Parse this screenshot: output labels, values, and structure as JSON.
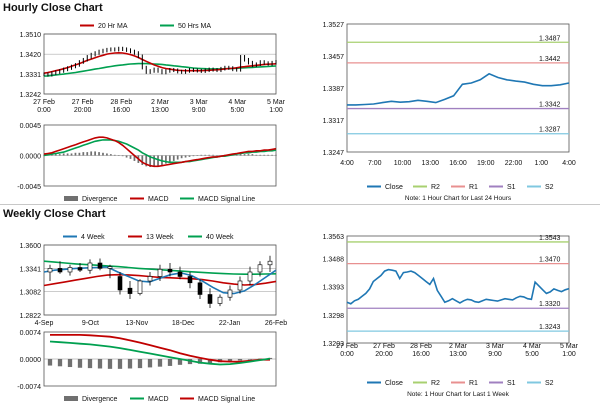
{
  "colors": {
    "close": "#1f77b4",
    "ma_fast": "#c00000",
    "ma_slow": "#00a050",
    "r2": "#a8d070",
    "r1": "#e89090",
    "s1": "#a080c0",
    "s2": "#80c8e0",
    "divergence": "#707070",
    "up": "#1f4fbf",
    "down": "#000000"
  },
  "hourly": {
    "title": "Hourly Close Chart",
    "legend": [
      "20 Hr MA",
      "50 Hrs MA"
    ],
    "macd_legend": [
      "Divergence",
      "MACD",
      "MACD Signal Line"
    ],
    "note": "Note: 1 Hour Chart for Last 24 Hours",
    "pivot_legend": [
      "Close",
      "R2",
      "R1",
      "S1",
      "S2"
    ]
  },
  "weekly": {
    "title": "Weekly Close Chart",
    "legend": [
      "4 Week",
      "13 Week",
      "40 Week"
    ],
    "macd_legend": [
      "Divergence",
      "MACD",
      "MACD Signal Line"
    ],
    "note": "Note: 1 Hour Chart for Last 1 Week",
    "pivot_legend": [
      "Close",
      "R2",
      "R1",
      "S1",
      "S2"
    ]
  },
  "chart_data": [
    {
      "id": "hourly-price",
      "type": "line",
      "title": "Hourly Close Chart",
      "yticks": [
        "1.3510",
        "1.3420",
        "1.3331",
        "1.3242"
      ],
      "ylim": [
        1.3242,
        1.351
      ],
      "xticks": [
        "27 Feb\n0:00",
        "27 Feb\n20:00",
        "28 Feb\n16:00",
        "2 Mar\n13:00",
        "3 Mar\n9:00",
        "4 Mar\n5:00",
        "5 Mar\n1:00"
      ],
      "price": [
        1.333,
        1.3328,
        1.3335,
        1.334,
        1.3345,
        1.3352,
        1.3358,
        1.3365,
        1.3372,
        1.3385,
        1.3395,
        1.3408,
        1.3418,
        1.3425,
        1.3432,
        1.3436,
        1.344,
        1.3442,
        1.344,
        1.3445,
        1.3442,
        1.3438,
        1.3432,
        1.3425,
        1.341,
        1.336,
        1.334,
        1.3345,
        1.3352,
        1.3345,
        1.3338,
        1.3345,
        1.335,
        1.3348,
        1.3342,
        1.334,
        1.3345,
        1.335,
        1.3348,
        1.3346,
        1.3344,
        1.3348,
        1.3352,
        1.335,
        1.3348,
        1.3355,
        1.336,
        1.3358,
        1.3352,
        1.335,
        1.3408,
        1.3395,
        1.3382,
        1.337,
        1.3375,
        1.3385,
        1.338,
        1.3376,
        1.3382,
        1.3386
      ],
      "series": [
        {
          "name": "20 Hr MA",
          "values": [
            1.3335,
            1.3338,
            1.3342,
            1.3346,
            1.335,
            1.3355,
            1.336,
            1.3366,
            1.3372,
            1.3378,
            1.3385,
            1.3392,
            1.3398,
            1.3404,
            1.341,
            1.3415,
            1.342,
            1.3423,
            1.3425,
            1.3426,
            1.3425,
            1.3422,
            1.3418,
            1.3412,
            1.3405,
            1.3396,
            1.3388,
            1.338,
            1.3372,
            1.3366,
            1.336,
            1.3356,
            1.3353,
            1.335,
            1.3348,
            1.3347,
            1.3346,
            1.3346,
            1.3346,
            1.3346,
            1.3346,
            1.3347,
            1.3348,
            1.3349,
            1.335,
            1.3352,
            1.3354,
            1.3356,
            1.3357,
            1.3359,
            1.3362,
            1.3364,
            1.3366,
            1.3368,
            1.337,
            1.3372,
            1.3374,
            1.3375,
            1.3376,
            1.3377
          ]
        },
        {
          "name": "50 Hrs MA",
          "values": [
            1.3322,
            1.3323,
            1.3325,
            1.3327,
            1.3329,
            1.3331,
            1.3333,
            1.3336,
            1.3338,
            1.3341,
            1.3344,
            1.3347,
            1.335,
            1.3353,
            1.3356,
            1.3359,
            1.3362,
            1.3365,
            1.3368,
            1.337,
            1.3372,
            1.3374,
            1.3376,
            1.3377,
            1.3378,
            1.3378,
            1.3378,
            1.3377,
            1.3376,
            1.3375,
            1.3374,
            1.3372,
            1.337,
            1.3368,
            1.3366,
            1.3364,
            1.3362,
            1.336,
            1.3358,
            1.3357,
            1.3356,
            1.3355,
            1.3354,
            1.3354,
            1.3354,
            1.3354,
            1.3355,
            1.3355,
            1.3356,
            1.3357,
            1.3358,
            1.3359,
            1.336,
            1.3361,
            1.3362,
            1.3363,
            1.3364,
            1.3365,
            1.3366,
            1.3367
          ]
        }
      ]
    },
    {
      "id": "hourly-macd",
      "type": "line",
      "yticks": [
        "0.0045",
        "0.0000",
        "-0.0045"
      ],
      "ylim": [
        -0.0045,
        0.0045
      ],
      "divergence": [
        0.0001,
        0.0001,
        0.0002,
        0.0002,
        0.0002,
        0.0003,
        0.0003,
        0.0003,
        0.0004,
        0.0004,
        0.0005,
        0.0005,
        0.0006,
        0.0006,
        0.0005,
        0.0004,
        0.0003,
        0.0002,
        0.0001,
        0.0,
        -0.0001,
        -0.0003,
        -0.0005,
        -0.0008,
        -0.0011,
        -0.0014,
        -0.0016,
        -0.0017,
        -0.0017,
        -0.0016,
        -0.0014,
        -0.0012,
        -0.001,
        -0.0008,
        -0.0006,
        -0.0004,
        -0.0003,
        -0.0002,
        -0.0001,
        0.0,
        0.0001,
        0.0001,
        0.0001,
        0.0001,
        0.0,
        0.0,
        0.0001,
        0.0001,
        0.0001,
        0.0001,
        0.0002,
        0.0002,
        0.0002,
        0.0002,
        0.0001,
        0.0001,
        0.0001,
        0.0001,
        0.0001,
        0.0001
      ],
      "series": [
        {
          "name": "MACD",
          "values": [
            0.0002,
            0.0003,
            0.0004,
            0.0006,
            0.0008,
            0.001,
            0.0012,
            0.0014,
            0.0016,
            0.0018,
            0.002,
            0.0022,
            0.0024,
            0.0026,
            0.0027,
            0.0027,
            0.0026,
            0.0024,
            0.0022,
            0.0019,
            0.0015,
            0.001,
            0.0005,
            0.0,
            -0.0005,
            -0.001,
            -0.0013,
            -0.0015,
            -0.0016,
            -0.0016,
            -0.0015,
            -0.0014,
            -0.0013,
            -0.0012,
            -0.0011,
            -0.001,
            -0.0009,
            -0.0008,
            -0.0007,
            -0.0006,
            -0.0005,
            -0.0004,
            -0.0003,
            -0.0002,
            -0.0002,
            -0.0001,
            0.0,
            0.0001,
            0.0002,
            0.0003,
            0.0004,
            0.0005,
            0.0006,
            0.0006,
            0.0007,
            0.0007,
            0.0008,
            0.0008,
            0.0009,
            0.001
          ]
        },
        {
          "name": "MACD Signal Line",
          "values": [
            0.0,
            0.0001,
            0.0002,
            0.0003,
            0.0004,
            0.0005,
            0.0007,
            0.0009,
            0.0011,
            0.0013,
            0.0015,
            0.0017,
            0.0019,
            0.0021,
            0.0022,
            0.0023,
            0.0023,
            0.0023,
            0.0022,
            0.0021,
            0.0019,
            0.0017,
            0.0014,
            0.0011,
            0.0008,
            0.0004,
            0.0001,
            -0.0002,
            -0.0004,
            -0.0006,
            -0.0008,
            -0.0009,
            -0.001,
            -0.001,
            -0.001,
            -0.001,
            -0.0009,
            -0.0009,
            -0.0008,
            -0.0007,
            -0.0006,
            -0.0005,
            -0.0004,
            -0.0003,
            -0.0002,
            -0.0001,
            -0.0001,
            0.0,
            0.0001,
            0.0002,
            0.0003,
            0.0004,
            0.0004,
            0.0005,
            0.0005,
            0.0006,
            0.0006,
            0.0007,
            0.0007,
            0.0008
          ]
        }
      ]
    },
    {
      "id": "hourly-pivot",
      "type": "line",
      "yticks": [
        "1.3527",
        "1.3457",
        "1.3387",
        "1.3317",
        "1.3247"
      ],
      "ylim": [
        1.3247,
        1.3527
      ],
      "xticks": [
        "4:00",
        "7:00",
        "10:00",
        "13:00",
        "16:00",
        "19:00",
        "22:00",
        "1:00",
        "4:00"
      ],
      "levels": [
        {
          "name": "R2",
          "value": 1.3487,
          "label": "1.3487"
        },
        {
          "name": "R1",
          "value": 1.3442,
          "label": "1.3442"
        },
        {
          "name": "S1",
          "value": 1.3342,
          "label": "1.3342"
        },
        {
          "name": "S2",
          "value": 1.3287,
          "label": "1.3287"
        }
      ],
      "close": [
        1.335,
        1.335,
        1.3351,
        1.3352,
        1.3355,
        1.3358,
        1.3356,
        1.3357,
        1.336,
        1.3358,
        1.3355,
        1.3362,
        1.337,
        1.3395,
        1.3398,
        1.3405,
        1.3418,
        1.341,
        1.3405,
        1.3402,
        1.34,
        1.3395,
        1.3392,
        1.3392,
        1.3394,
        1.3398
      ]
    },
    {
      "id": "weekly-price",
      "type": "line",
      "title": "Weekly Close Chart",
      "yticks": [
        "1.3600",
        "1.3341",
        "1.3082",
        "1.2822"
      ],
      "ylim": [
        1.2822,
        1.36
      ],
      "xticks": [
        "4-Sep",
        "9-Oct",
        "13-Nov",
        "18-Dec",
        "22-Jan",
        "26-Feb"
      ],
      "candles": [
        {
          "o": 1.33,
          "h": 1.338,
          "l": 1.32,
          "c": 1.334
        },
        {
          "o": 1.334,
          "h": 1.342,
          "l": 1.328,
          "c": 1.33
        },
        {
          "o": 1.33,
          "h": 1.338,
          "l": 1.326,
          "c": 1.335
        },
        {
          "o": 1.335,
          "h": 1.34,
          "l": 1.33,
          "c": 1.332
        },
        {
          "o": 1.332,
          "h": 1.344,
          "l": 1.328,
          "c": 1.34
        },
        {
          "o": 1.34,
          "h": 1.345,
          "l": 1.332,
          "c": 1.334
        },
        {
          "o": 1.334,
          "h": 1.338,
          "l": 1.323,
          "c": 1.336
        },
        {
          "o": 1.325,
          "h": 1.33,
          "l": 1.305,
          "c": 1.31
        },
        {
          "o": 1.312,
          "h": 1.32,
          "l": 1.3,
          "c": 1.306
        },
        {
          "o": 1.306,
          "h": 1.322,
          "l": 1.304,
          "c": 1.32
        },
        {
          "o": 1.32,
          "h": 1.33,
          "l": 1.315,
          "c": 1.325
        },
        {
          "o": 1.325,
          "h": 1.338,
          "l": 1.32,
          "c": 1.333
        },
        {
          "o": 1.333,
          "h": 1.34,
          "l": 1.325,
          "c": 1.33
        },
        {
          "o": 1.33,
          "h": 1.336,
          "l": 1.322,
          "c": 1.325
        },
        {
          "o": 1.325,
          "h": 1.33,
          "l": 1.312,
          "c": 1.318
        },
        {
          "o": 1.318,
          "h": 1.322,
          "l": 1.3,
          "c": 1.305
        },
        {
          "o": 1.305,
          "h": 1.312,
          "l": 1.29,
          "c": 1.295
        },
        {
          "o": 1.295,
          "h": 1.305,
          "l": 1.292,
          "c": 1.302
        },
        {
          "o": 1.302,
          "h": 1.315,
          "l": 1.298,
          "c": 1.31
        },
        {
          "o": 1.31,
          "h": 1.325,
          "l": 1.306,
          "c": 1.32
        },
        {
          "o": 1.32,
          "h": 1.336,
          "l": 1.315,
          "c": 1.33
        },
        {
          "o": 1.33,
          "h": 1.342,
          "l": 1.325,
          "c": 1.338
        },
        {
          "o": 1.338,
          "h": 1.348,
          "l": 1.33,
          "c": 1.342
        }
      ],
      "series": [
        {
          "name": "4 Week",
          "values": [
            1.33,
            1.332,
            1.333,
            1.334,
            1.3345,
            1.335,
            1.3355,
            1.33,
            1.325,
            1.32,
            1.319,
            1.323,
            1.327,
            1.329,
            1.326,
            1.32,
            1.313,
            1.307,
            1.306,
            1.309,
            1.316,
            1.324,
            1.332
          ]
        },
        {
          "name": "13 Week",
          "values": [
            1.315,
            1.317,
            1.319,
            1.321,
            1.323,
            1.325,
            1.3265,
            1.327,
            1.3268,
            1.326,
            1.325,
            1.324,
            1.3235,
            1.323,
            1.3225,
            1.3215,
            1.32,
            1.318,
            1.3165,
            1.3155,
            1.316,
            1.3175,
            1.3195
          ]
        },
        {
          "name": "40 Week",
          "values": [
            1.342,
            1.341,
            1.34,
            1.339,
            1.3382,
            1.3375,
            1.3368,
            1.336,
            1.335,
            1.334,
            1.3332,
            1.3325,
            1.3318,
            1.331,
            1.3302,
            1.3295,
            1.3288,
            1.3282,
            1.3278,
            1.3276,
            1.3276,
            1.3278,
            1.328
          ]
        }
      ]
    },
    {
      "id": "weekly-macd",
      "type": "line",
      "yticks": [
        "0.0074",
        "0.0000",
        "-0.0074"
      ],
      "ylim": [
        -0.0074,
        0.0074
      ],
      "divergence": [
        -0.0018,
        -0.002,
        -0.0022,
        -0.0024,
        -0.0025,
        -0.0026,
        -0.0027,
        -0.0027,
        -0.0026,
        -0.0025,
        -0.0023,
        -0.0021,
        -0.0019,
        -0.0016,
        -0.0014,
        -0.0013,
        -0.0011,
        -0.0009,
        -0.0007,
        -0.0004,
        -0.0002,
        0.0001,
        0.0003
      ],
      "series": [
        {
          "name": "MACD",
          "values": [
            0.0048,
            0.0046,
            0.0044,
            0.0042,
            0.004,
            0.0037,
            0.0034,
            0.003,
            0.0025,
            0.002,
            0.0015,
            0.001,
            0.0005,
            0.0,
            -0.0005,
            -0.001,
            -0.0013,
            -0.0015,
            -0.0014,
            -0.0011,
            -0.0007,
            -0.0003,
            0.0001
          ]
        },
        {
          "name": "MACD Signal Line",
          "values": [
            0.0066,
            0.0066,
            0.0066,
            0.0066,
            0.0065,
            0.0063,
            0.0061,
            0.0057,
            0.0051,
            0.0045,
            0.0038,
            0.0031,
            0.0024,
            0.0016,
            0.0009,
            0.0003,
            -0.0002,
            -0.0006,
            -0.0007,
            -0.0007,
            -0.0005,
            -0.0002,
            -0.0002
          ]
        }
      ]
    },
    {
      "id": "weekly-pivot",
      "type": "line",
      "yticks": [
        "1.3563",
        "1.3488",
        "1.3393",
        "1.3298",
        "1.3203"
      ],
      "ylim": [
        1.3203,
        1.3563
      ],
      "xticks": [
        "27 Feb\n0:00",
        "27 Feb\n20:00",
        "28 Feb\n16:00",
        "2 Mar\n13:00",
        "3 Mar\n9:00",
        "4 Mar\n5:00",
        "5 Mar\n1:00"
      ],
      "levels": [
        {
          "name": "R2",
          "value": 1.3543,
          "label": "1.3543"
        },
        {
          "name": "R1",
          "value": 1.347,
          "label": "1.3470"
        },
        {
          "name": "S1",
          "value": 1.332,
          "label": "1.3320"
        },
        {
          "name": "S2",
          "value": 1.3243,
          "label": "1.3243"
        }
      ],
      "close": [
        1.334,
        1.3335,
        1.3345,
        1.335,
        1.336,
        1.337,
        1.3385,
        1.341,
        1.342,
        1.343,
        1.3445,
        1.345,
        1.3448,
        1.3445,
        1.342,
        1.344,
        1.3442,
        1.3445,
        1.344,
        1.343,
        1.342,
        1.341,
        1.34,
        1.342,
        1.338,
        1.336,
        1.334,
        1.3345,
        1.3352,
        1.3345,
        1.3338,
        1.3345,
        1.335,
        1.3348,
        1.3342,
        1.334,
        1.3345,
        1.335,
        1.3348,
        1.3346,
        1.3344,
        1.3348,
        1.3352,
        1.335,
        1.3348,
        1.3355,
        1.336,
        1.3358,
        1.3352,
        1.335,
        1.3408,
        1.3395,
        1.3382,
        1.337,
        1.3375,
        1.3385,
        1.338,
        1.3376,
        1.3382,
        1.3386
      ]
    }
  ]
}
